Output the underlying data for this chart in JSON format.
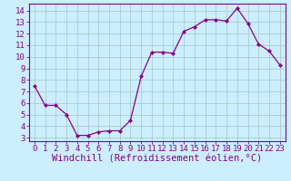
{
  "x_vals": [
    0,
    1,
    2,
    3,
    4,
    5,
    6,
    7,
    8,
    9,
    10,
    11,
    12,
    13,
    14,
    15,
    16,
    17,
    18,
    19,
    20,
    21,
    22,
    23
  ],
  "y_vals": [
    7.5,
    5.8,
    5.8,
    5.0,
    3.2,
    3.2,
    3.5,
    3.6,
    3.6,
    4.5,
    8.3,
    10.4,
    10.4,
    10.3,
    12.2,
    12.6,
    13.2,
    13.2,
    13.1,
    14.2,
    12.9,
    11.1,
    10.5,
    9.3
  ],
  "background_color": "#cceeff",
  "line_color": "#880088",
  "grid_color": "#aacccc",
  "xlabel": "Windchill (Refroidissement éolien,°C)",
  "yticks": [
    3,
    4,
    5,
    6,
    7,
    8,
    9,
    10,
    11,
    12,
    13,
    14
  ],
  "xticks": [
    0,
    1,
    2,
    3,
    4,
    5,
    6,
    7,
    8,
    9,
    10,
    11,
    12,
    13,
    14,
    15,
    16,
    17,
    18,
    19,
    20,
    21,
    22,
    23
  ],
  "ylim": [
    2.7,
    14.6
  ],
  "xlim": [
    -0.5,
    23.5
  ],
  "tick_fontsize": 6.5,
  "xlabel_fontsize": 7.5
}
